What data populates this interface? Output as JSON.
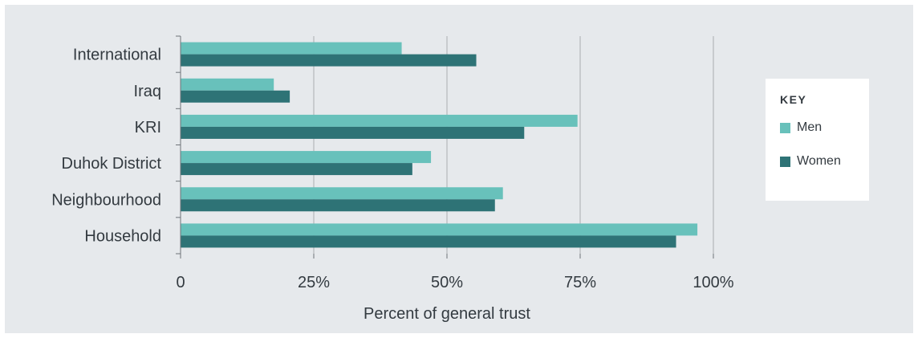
{
  "chart_data": {
    "type": "bar",
    "orientation": "horizontal",
    "categories": [
      "International",
      "Iraq",
      "KRI",
      "Duhok District",
      "Neighbourhood",
      "Household"
    ],
    "series": [
      {
        "name": "Men",
        "color": "#68c1bb",
        "values": [
          41.5,
          17.5,
          74.5,
          47,
          60.5,
          97
        ]
      },
      {
        "name": "Women",
        "color": "#2e7376",
        "values": [
          55.5,
          20.5,
          64.5,
          43.5,
          59,
          93
        ]
      }
    ],
    "xlabel": "Percent of general trust",
    "xlim": [
      0,
      100
    ],
    "xticks": [
      {
        "value": 0,
        "label": "0"
      },
      {
        "value": 25,
        "label": "25%"
      },
      {
        "value": 50,
        "label": "50%"
      },
      {
        "value": 75,
        "label": "75%"
      },
      {
        "value": 100,
        "label": "100%"
      }
    ],
    "grid": true,
    "legend": {
      "title": "KEY",
      "position": "right"
    }
  },
  "legend": {
    "title": "KEY",
    "items": [
      {
        "label": "Men",
        "color": "#68c1bb"
      },
      {
        "label": "Women",
        "color": "#2e7376"
      }
    ]
  }
}
